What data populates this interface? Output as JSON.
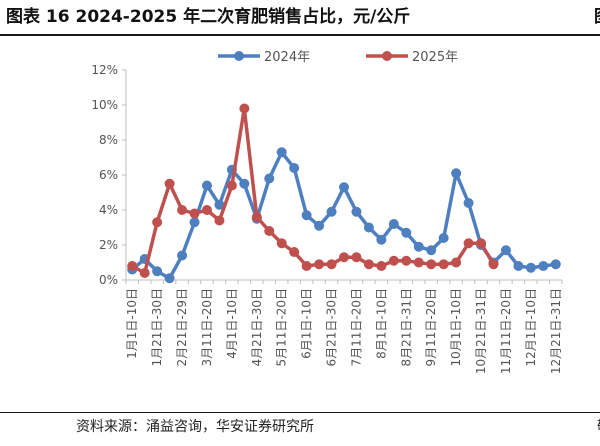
{
  "header": {
    "title": "图表 16 2024-2025 年二次育肥销售占比，元/公斤",
    "right_clip": "图"
  },
  "footer": {
    "source": "资料来源：涌益咨询，华安证券研究所",
    "right_clip": "敬"
  },
  "colors": {
    "series_2024": "#4e80c0",
    "series_2025": "#c0504d",
    "axis": "#bfbfbf"
  },
  "chart_data": {
    "type": "line",
    "title": "2024-2025 年二次育肥销售占比",
    "xlabel": "",
    "ylabel": "",
    "ylim": [
      0,
      12
    ],
    "y_ticks": [
      0,
      2,
      4,
      6,
      8,
      10,
      12
    ],
    "y_tick_labels": [
      "0%",
      "2%",
      "4%",
      "6%",
      "8%",
      "10%",
      "12%"
    ],
    "grid": false,
    "legend_position": "top-center",
    "x_tick_labels": [
      "1月1日-10日",
      "1月21日-30日",
      "2月21日-29日",
      "3月11日-20日",
      "4月1日-10日",
      "4月21日-30日",
      "5月11日-20日",
      "6月1日-10日",
      "6月21日-30日",
      "7月11日-20日",
      "8月1日-10日",
      "8月21日-31日",
      "9月11日-20日",
      "10月1日-10日",
      "10月21日-31日",
      "11月11日-20日",
      "12月1日-10日",
      "12月21日-31日"
    ],
    "series": [
      {
        "name": "2024年",
        "values": [
          0.6,
          1.2,
          0.5,
          0.1,
          1.4,
          3.3,
          5.4,
          4.3,
          6.3,
          5.5,
          3.5,
          5.8,
          7.3,
          6.4,
          3.7,
          3.1,
          3.9,
          5.3,
          3.9,
          3.0,
          2.3,
          3.2,
          2.7,
          1.9,
          1.7,
          2.4,
          6.1,
          4.4,
          2.0,
          1.0,
          1.7,
          0.8,
          0.7,
          0.8,
          0.9
        ]
      },
      {
        "name": "2025年",
        "values": [
          0.8,
          0.4,
          3.3,
          5.5,
          4.0,
          3.8,
          4.0,
          3.4,
          5.4,
          9.8,
          3.6,
          2.8,
          2.1,
          1.6,
          0.8,
          0.9,
          0.9,
          1.3,
          1.3,
          0.9,
          0.8,
          1.1,
          1.1,
          1.0,
          0.9,
          0.9,
          1.0,
          2.1,
          2.1,
          0.9,
          null,
          null,
          null,
          null,
          null
        ]
      }
    ]
  }
}
